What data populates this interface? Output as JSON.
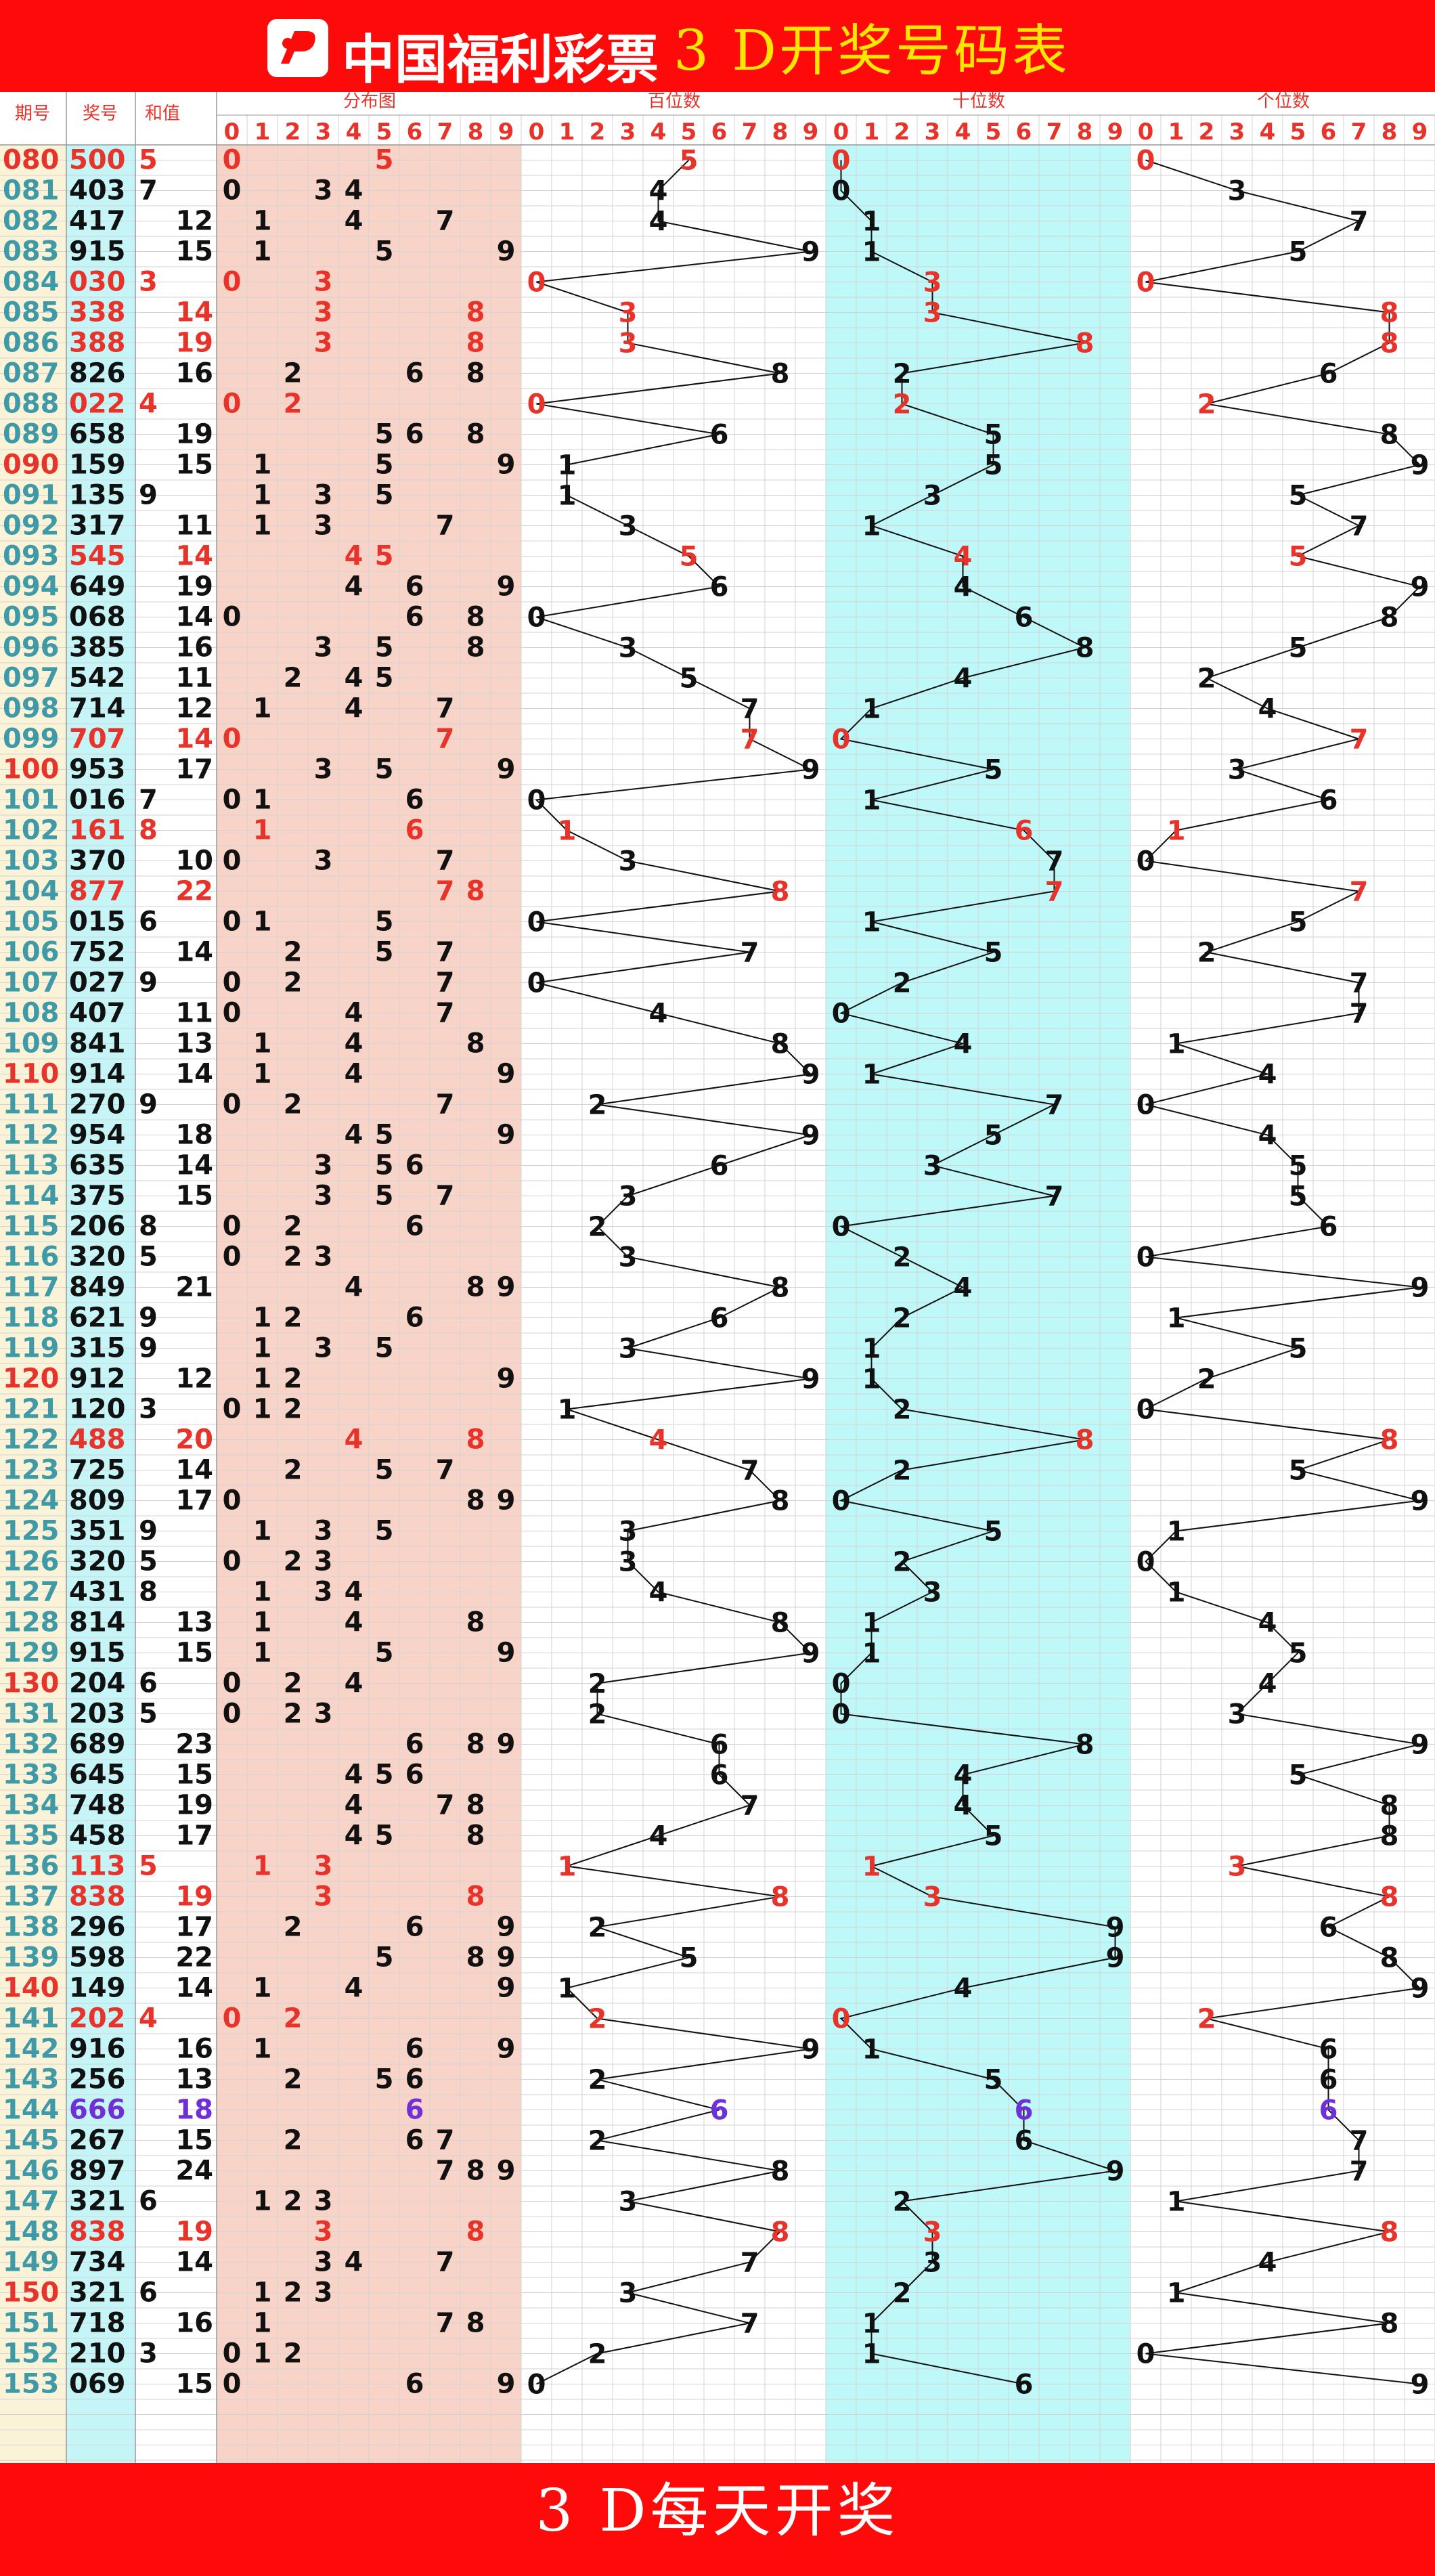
{
  "header": {
    "logo_text": "中国福利彩票",
    "title": "3 D开奖号码表"
  },
  "footer": {
    "text": "3 D每天开奖"
  },
  "columns": {
    "period": "期号",
    "number": "奖号",
    "sum": "和值",
    "distribution": "分布图",
    "hundreds": "百位数",
    "tens": "十位数",
    "units": "个位数"
  },
  "colors": {
    "background": "#ff0a0a",
    "title": "#ffe600",
    "highlight": "#e8332a",
    "triple": "#7030d8",
    "normal": "#111111",
    "period_bg": "#faf3d8",
    "number_bg": "#c6f5f7",
    "distribution_bg": "#f8d3c8",
    "tens_bg": "#bff8f8",
    "grid": "#d3d3d3"
  },
  "chart_data": {
    "type": "table",
    "title": "3 D开奖号码表",
    "series": [
      "百位数",
      "十位数",
      "个位数"
    ],
    "draws": [
      {
        "period": "080",
        "number": "500",
        "sum": 5
      },
      {
        "period": "081",
        "number": "403",
        "sum": 7
      },
      {
        "period": "082",
        "number": "417",
        "sum": 12
      },
      {
        "period": "083",
        "number": "915",
        "sum": 15
      },
      {
        "period": "084",
        "number": "030",
        "sum": 3
      },
      {
        "period": "085",
        "number": "338",
        "sum": 14
      },
      {
        "period": "086",
        "number": "388",
        "sum": 19
      },
      {
        "period": "087",
        "number": "826",
        "sum": 16
      },
      {
        "period": "088",
        "number": "022",
        "sum": 4
      },
      {
        "period": "089",
        "number": "658",
        "sum": 19
      },
      {
        "period": "090",
        "number": "159",
        "sum": 15
      },
      {
        "period": "091",
        "number": "135",
        "sum": 9
      },
      {
        "period": "092",
        "number": "317",
        "sum": 11
      },
      {
        "period": "093",
        "number": "545",
        "sum": 14
      },
      {
        "period": "094",
        "number": "649",
        "sum": 19
      },
      {
        "period": "095",
        "number": "068",
        "sum": 14
      },
      {
        "period": "096",
        "number": "385",
        "sum": 16
      },
      {
        "period": "097",
        "number": "542",
        "sum": 11
      },
      {
        "period": "098",
        "number": "714",
        "sum": 12
      },
      {
        "period": "099",
        "number": "707",
        "sum": 14
      },
      {
        "period": "100",
        "number": "953",
        "sum": 17
      },
      {
        "period": "101",
        "number": "016",
        "sum": 7
      },
      {
        "period": "102",
        "number": "161",
        "sum": 8
      },
      {
        "period": "103",
        "number": "370",
        "sum": 10
      },
      {
        "period": "104",
        "number": "877",
        "sum": 22
      },
      {
        "period": "105",
        "number": "015",
        "sum": 6
      },
      {
        "period": "106",
        "number": "752",
        "sum": 14
      },
      {
        "period": "107",
        "number": "027",
        "sum": 9
      },
      {
        "period": "108",
        "number": "407",
        "sum": 11
      },
      {
        "period": "109",
        "number": "841",
        "sum": 13
      },
      {
        "period": "110",
        "number": "914",
        "sum": 14
      },
      {
        "period": "111",
        "number": "270",
        "sum": 9
      },
      {
        "period": "112",
        "number": "954",
        "sum": 18
      },
      {
        "period": "113",
        "number": "635",
        "sum": 14
      },
      {
        "period": "114",
        "number": "375",
        "sum": 15
      },
      {
        "period": "115",
        "number": "206",
        "sum": 8
      },
      {
        "period": "116",
        "number": "320",
        "sum": 5
      },
      {
        "period": "117",
        "number": "849",
        "sum": 21
      },
      {
        "period": "118",
        "number": "621",
        "sum": 9
      },
      {
        "period": "119",
        "number": "315",
        "sum": 9
      },
      {
        "period": "120",
        "number": "912",
        "sum": 12
      },
      {
        "period": "121",
        "number": "120",
        "sum": 3
      },
      {
        "period": "122",
        "number": "488",
        "sum": 20
      },
      {
        "period": "123",
        "number": "725",
        "sum": 14
      },
      {
        "period": "124",
        "number": "809",
        "sum": 17
      },
      {
        "period": "125",
        "number": "351",
        "sum": 9
      },
      {
        "period": "126",
        "number": "320",
        "sum": 5
      },
      {
        "period": "127",
        "number": "431",
        "sum": 8
      },
      {
        "period": "128",
        "number": "814",
        "sum": 13
      },
      {
        "period": "129",
        "number": "915",
        "sum": 15
      },
      {
        "period": "130",
        "number": "204",
        "sum": 6
      },
      {
        "period": "131",
        "number": "203",
        "sum": 5
      },
      {
        "period": "132",
        "number": "689",
        "sum": 23
      },
      {
        "period": "133",
        "number": "645",
        "sum": 15
      },
      {
        "period": "134",
        "number": "748",
        "sum": 19
      },
      {
        "period": "135",
        "number": "458",
        "sum": 17
      },
      {
        "period": "136",
        "number": "113",
        "sum": 5
      },
      {
        "period": "137",
        "number": "838",
        "sum": 19
      },
      {
        "period": "138",
        "number": "296",
        "sum": 17
      },
      {
        "period": "139",
        "number": "598",
        "sum": 22
      },
      {
        "period": "140",
        "number": "149",
        "sum": 14
      },
      {
        "period": "141",
        "number": "202",
        "sum": 4
      },
      {
        "period": "142",
        "number": "916",
        "sum": 16
      },
      {
        "period": "143",
        "number": "256",
        "sum": 13
      },
      {
        "period": "144",
        "number": "666",
        "sum": 18
      },
      {
        "period": "145",
        "number": "267",
        "sum": 15
      },
      {
        "period": "146",
        "number": "897",
        "sum": 24
      },
      {
        "period": "147",
        "number": "321",
        "sum": 6
      },
      {
        "period": "148",
        "number": "838",
        "sum": 19
      },
      {
        "period": "149",
        "number": "734",
        "sum": 14
      },
      {
        "period": "150",
        "number": "321",
        "sum": 6
      },
      {
        "period": "151",
        "number": "718",
        "sum": 16
      },
      {
        "period": "152",
        "number": "210",
        "sum": 3
      },
      {
        "period": "153",
        "number": "069",
        "sum": 15
      }
    ]
  }
}
